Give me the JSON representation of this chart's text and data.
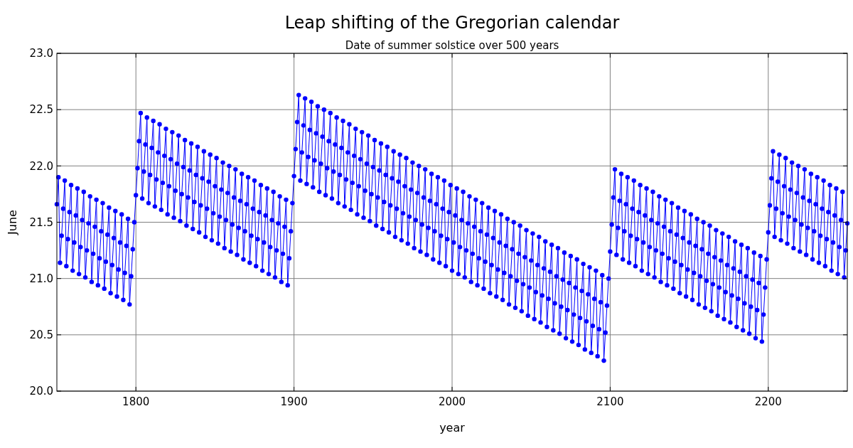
{
  "chart_data": {
    "type": "line",
    "title": "Leap shifting of the Gregorian calendar",
    "subtitle": "Date of summer solstice over 500 years",
    "xlabel": "year",
    "ylabel": "June",
    "xlim": [
      1750,
      2250
    ],
    "xticks": [
      1800,
      1900,
      2000,
      2100,
      2200
    ],
    "ylim": [
      20,
      23
    ],
    "yticks": [
      {
        "value": 20,
        "label": "20.0"
      },
      {
        "value": 20.5,
        "label": "20.5"
      },
      {
        "value": 21,
        "label": "21.0"
      },
      {
        "value": 21.5,
        "label": "21.5"
      },
      {
        "value": 22,
        "label": "22.0"
      },
      {
        "value": 22.5,
        "label": "22.5"
      },
      {
        "value": 23,
        "label": "23.0"
      }
    ],
    "grid": true,
    "marker": "circle",
    "line_style": "solid",
    "series": [
      {
        "color": "#0000ff",
        "x": [
          1750,
          1751,
          1752,
          1753,
          1754,
          1755,
          1756,
          1757,
          1758,
          1759,
          1760,
          1761,
          1762,
          1763,
          1764,
          1765,
          1766,
          1767,
          1768,
          1769,
          1770,
          1771,
          1772,
          1773,
          1774,
          1775,
          1776,
          1777,
          1778,
          1779,
          1780,
          1781,
          1782,
          1783,
          1784,
          1785,
          1786,
          1787,
          1788,
          1789,
          1790,
          1791,
          1792,
          1793,
          1794,
          1795,
          1796,
          1797,
          1798,
          1799,
          1800,
          1801,
          1802,
          1803,
          1804,
          1805,
          1806,
          1807,
          1808,
          1809,
          1810,
          1811,
          1812,
          1813,
          1814,
          1815,
          1816,
          1817,
          1818,
          1819,
          1820,
          1821,
          1822,
          1823,
          1824,
          1825,
          1826,
          1827,
          1828,
          1829,
          1830,
          1831,
          1832,
          1833,
          1834,
          1835,
          1836,
          1837,
          1838,
          1839,
          1840,
          1841,
          1842,
          1843,
          1844,
          1845,
          1846,
          1847,
          1848,
          1849,
          1850,
          1851,
          1852,
          1853,
          1854,
          1855,
          1856,
          1857,
          1858,
          1859,
          1860,
          1861,
          1862,
          1863,
          1864,
          1865,
          1866,
          1867,
          1868,
          1869,
          1870,
          1871,
          1872,
          1873,
          1874,
          1875,
          1876,
          1877,
          1878,
          1879,
          1880,
          1881,
          1882,
          1883,
          1884,
          1885,
          1886,
          1887,
          1888,
          1889,
          1890,
          1891,
          1892,
          1893,
          1894,
          1895,
          1896,
          1897,
          1898,
          1899,
          1900,
          1901,
          1902,
          1903,
          1904,
          1905,
          1906,
          1907,
          1908,
          1909,
          1910,
          1911,
          1912,
          1913,
          1914,
          1915,
          1916,
          1917,
          1918,
          1919,
          1920,
          1921,
          1922,
          1923,
          1924,
          1925,
          1926,
          1927,
          1928,
          1929,
          1930,
          1931,
          1932,
          1933,
          1934,
          1935,
          1936,
          1937,
          1938,
          1939,
          1940,
          1941,
          1942,
          1943,
          1944,
          1945,
          1946,
          1947,
          1948,
          1949,
          1950,
          1951,
          1952,
          1953,
          1954,
          1955,
          1956,
          1957,
          1958,
          1959,
          1960,
          1961,
          1962,
          1963,
          1964,
          1965,
          1966,
          1967,
          1968,
          1969,
          1970,
          1971,
          1972,
          1973,
          1974,
          1975,
          1976,
          1977,
          1978,
          1979,
          1980,
          1981,
          1982,
          1983,
          1984,
          1985,
          1986,
          1987,
          1988,
          1989,
          1990,
          1991,
          1992,
          1993,
          1994,
          1995,
          1996,
          1997,
          1998,
          1999,
          2000,
          2001,
          2002,
          2003,
          2004,
          2005,
          2006,
          2007,
          2008,
          2009,
          2010,
          2011,
          2012,
          2013,
          2014,
          2015,
          2016,
          2017,
          2018,
          2019,
          2020,
          2021,
          2022,
          2023,
          2024,
          2025,
          2026,
          2027,
          2028,
          2029,
          2030,
          2031,
          2032,
          2033,
          2034,
          2035,
          2036,
          2037,
          2038,
          2039,
          2040,
          2041,
          2042,
          2043,
          2044,
          2045,
          2046,
          2047,
          2048,
          2049,
          2050,
          2051,
          2052,
          2053,
          2054,
          2055,
          2056,
          2057,
          2058,
          2059,
          2060,
          2061,
          2062,
          2063,
          2064,
          2065,
          2066,
          2067,
          2068,
          2069,
          2070,
          2071,
          2072,
          2073,
          2074,
          2075,
          2076,
          2077,
          2078,
          2079,
          2080,
          2081,
          2082,
          2083,
          2084,
          2085,
          2086,
          2087,
          2088,
          2089,
          2090,
          2091,
          2092,
          2093,
          2094,
          2095,
          2096,
          2097,
          2098,
          2099,
          2100,
          2101,
          2102,
          2103,
          2104,
          2105,
          2106,
          2107,
          2108,
          2109,
          2110,
          2111,
          2112,
          2113,
          2114,
          2115,
          2116,
          2117,
          2118,
          2119,
          2120,
          2121,
          2122,
          2123,
          2124,
          2125,
          2126,
          2127,
          2128,
          2129,
          2130,
          2131,
          2132,
          2133,
          2134,
          2135,
          2136,
          2137,
          2138,
          2139,
          2140,
          2141,
          2142,
          2143,
          2144,
          2145,
          2146,
          2147,
          2148,
          2149,
          2150,
          2151,
          2152,
          2153,
          2154,
          2155,
          2156,
          2157,
          2158,
          2159,
          2160,
          2161,
          2162,
          2163,
          2164,
          2165,
          2166,
          2167,
          2168,
          2169,
          2170,
          2171,
          2172,
          2173,
          2174,
          2175,
          2176,
          2177,
          2178,
          2179,
          2180,
          2181,
          2182,
          2183,
          2184,
          2185,
          2186,
          2187,
          2188,
          2189,
          2190,
          2191,
          2192,
          2193,
          2194,
          2195,
          2196,
          2197,
          2198,
          2199,
          2200,
          2201,
          2202,
          2203,
          2204,
          2205,
          2206,
          2207,
          2208,
          2209,
          2210,
          2211,
          2212,
          2213,
          2214,
          2215,
          2216,
          2217,
          2218,
          2219,
          2220,
          2221,
          2222,
          2223,
          2224,
          2225,
          2226,
          2227,
          2228,
          2229,
          2230,
          2231,
          2232,
          2233,
          2234,
          2235,
          2236,
          2237,
          2238,
          2239,
          2240,
          2241,
          2242,
          2243,
          2244,
          2245,
          2246,
          2247,
          2248,
          2249,
          2250
        ],
        "values": [
          21.66,
          21.9,
          21.14,
          21.38,
          21.62,
          21.87,
          21.11,
          21.35,
          21.59,
          21.83,
          21.07,
          21.32,
          21.56,
          21.8,
          21.04,
          21.28,
          21.52,
          21.77,
          21.01,
          21.25,
          21.49,
          21.73,
          20.97,
          21.22,
          21.46,
          21.7,
          20.94,
          21.18,
          21.42,
          21.67,
          20.91,
          21.15,
          21.39,
          21.63,
          20.87,
          21.12,
          21.36,
          21.6,
          20.84,
          21.08,
          21.32,
          21.57,
          20.81,
          21.05,
          21.29,
          21.53,
          20.77,
          21.02,
          21.26,
          21.5,
          21.74,
          21.98,
          22.22,
          22.47,
          21.71,
          21.95,
          22.19,
          22.43,
          21.67,
          21.92,
          22.16,
          22.4,
          21.64,
          21.88,
          22.12,
          22.37,
          21.61,
          21.85,
          22.09,
          22.33,
          21.57,
          21.82,
          22.06,
          22.3,
          21.54,
          21.78,
          22.02,
          22.27,
          21.51,
          21.75,
          21.99,
          22.23,
          21.47,
          21.72,
          21.96,
          22.2,
          21.44,
          21.68,
          21.92,
          22.17,
          21.41,
          21.65,
          21.89,
          22.13,
          21.37,
          21.62,
          21.86,
          22.1,
          21.34,
          21.58,
          21.82,
          22.07,
          21.31,
          21.55,
          21.79,
          22.03,
          21.27,
          21.52,
          21.76,
          22.0,
          21.24,
          21.48,
          21.72,
          21.97,
          21.21,
          21.45,
          21.69,
          21.93,
          21.17,
          21.42,
          21.66,
          21.9,
          21.14,
          21.38,
          21.62,
          21.87,
          21.11,
          21.35,
          21.59,
          21.83,
          21.07,
          21.32,
          21.56,
          21.8,
          21.04,
          21.28,
          21.52,
          21.77,
          21.01,
          21.25,
          21.49,
          21.73,
          20.97,
          21.22,
          21.46,
          21.7,
          20.94,
          21.18,
          21.42,
          21.67,
          21.91,
          22.15,
          22.39,
          22.63,
          21.87,
          22.12,
          22.36,
          22.6,
          21.84,
          22.08,
          22.32,
          22.57,
          21.81,
          22.05,
          22.29,
          22.53,
          21.77,
          22.02,
          22.26,
          22.5,
          21.74,
          21.98,
          22.22,
          22.47,
          21.71,
          21.95,
          22.19,
          22.43,
          21.67,
          21.92,
          22.16,
          22.4,
          21.64,
          21.88,
          22.12,
          22.37,
          21.61,
          21.85,
          22.09,
          22.33,
          21.57,
          21.82,
          22.06,
          22.3,
          21.54,
          21.78,
          22.02,
          22.27,
          21.51,
          21.75,
          21.99,
          22.23,
          21.47,
          21.72,
          21.96,
          22.2,
          21.44,
          21.68,
          21.92,
          22.17,
          21.41,
          21.65,
          21.89,
          22.13,
          21.37,
          21.62,
          21.86,
          22.1,
          21.34,
          21.58,
          21.82,
          22.07,
          21.31,
          21.55,
          21.79,
          22.03,
          21.27,
          21.52,
          21.76,
          22.0,
          21.24,
          21.48,
          21.72,
          21.97,
          21.21,
          21.45,
          21.69,
          21.93,
          21.17,
          21.42,
          21.66,
          21.9,
          21.14,
          21.38,
          21.62,
          21.87,
          21.11,
          21.35,
          21.59,
          21.83,
          21.07,
          21.32,
          21.56,
          21.8,
          21.04,
          21.28,
          21.52,
          21.77,
          21.01,
          21.25,
          21.49,
          21.73,
          20.97,
          21.22,
          21.46,
          21.7,
          20.94,
          21.18,
          21.42,
          21.67,
          20.91,
          21.15,
          21.39,
          21.63,
          20.87,
          21.12,
          21.36,
          21.6,
          20.84,
          21.08,
          21.32,
          21.57,
          20.81,
          21.05,
          21.29,
          21.53,
          20.77,
          21.02,
          21.26,
          21.5,
          20.74,
          20.98,
          21.22,
          21.47,
          20.71,
          20.95,
          21.19,
          21.43,
          20.67,
          20.92,
          21.16,
          21.4,
          20.64,
          20.88,
          21.12,
          21.37,
          20.61,
          20.85,
          21.09,
          21.33,
          20.57,
          20.82,
          21.06,
          21.3,
          20.54,
          20.78,
          21.02,
          21.27,
          20.51,
          20.75,
          20.99,
          21.23,
          20.47,
          20.72,
          20.96,
          21.2,
          20.44,
          20.68,
          20.92,
          21.17,
          20.41,
          20.65,
          20.89,
          21.13,
          20.37,
          20.62,
          20.86,
          21.1,
          20.34,
          20.58,
          20.82,
          21.07,
          20.31,
          20.55,
          20.79,
          21.03,
          20.27,
          20.52,
          20.76,
          21.0,
          21.24,
          21.48,
          21.72,
          21.97,
          21.21,
          21.45,
          21.69,
          21.93,
          21.17,
          21.42,
          21.66,
          21.9,
          21.14,
          21.38,
          21.62,
          21.87,
          21.11,
          21.35,
          21.59,
          21.83,
          21.07,
          21.32,
          21.56,
          21.8,
          21.04,
          21.28,
          21.52,
          21.77,
          21.01,
          21.25,
          21.49,
          21.73,
          20.97,
          21.22,
          21.46,
          21.7,
          20.94,
          21.18,
          21.42,
          21.67,
          20.91,
          21.15,
          21.39,
          21.63,
          20.87,
          21.12,
          21.36,
          21.6,
          20.84,
          21.08,
          21.32,
          21.57,
          20.81,
          21.05,
          21.29,
          21.53,
          20.77,
          21.02,
          21.26,
          21.5,
          20.74,
          20.98,
          21.22,
          21.47,
          20.71,
          20.95,
          21.19,
          21.43,
          20.67,
          20.92,
          21.16,
          21.4,
          20.64,
          20.88,
          21.12,
          21.37,
          20.61,
          20.85,
          21.09,
          21.33,
          20.57,
          20.82,
          21.06,
          21.3,
          20.54,
          20.78,
          21.02,
          21.27,
          20.51,
          20.75,
          20.99,
          21.23,
          20.47,
          20.72,
          20.96,
          21.2,
          20.44,
          20.68,
          20.92,
          21.17,
          21.41,
          21.65,
          21.89,
          22.13,
          21.37,
          21.62,
          21.86,
          22.1,
          21.34,
          21.58,
          21.82,
          22.07,
          21.31,
          21.55,
          21.79,
          22.03,
          21.27,
          21.52,
          21.76,
          22.0,
          21.24,
          21.48,
          21.72,
          21.97,
          21.21,
          21.45,
          21.69,
          21.93,
          21.17,
          21.42,
          21.66,
          21.9,
          21.14,
          21.38,
          21.62,
          21.87,
          21.11,
          21.35,
          21.59,
          21.83,
          21.07,
          21.32,
          21.56,
          21.8,
          21.04,
          21.28,
          21.52,
          21.77,
          21.01,
          21.25,
          21.49
        ]
      }
    ]
  }
}
